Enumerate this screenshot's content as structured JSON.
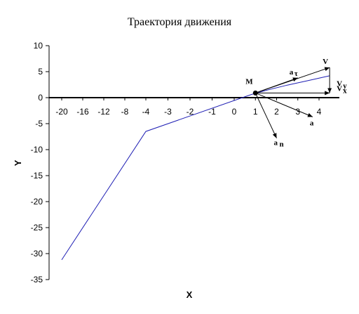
{
  "chart_data": {
    "type": "line",
    "title": "Траектория движения",
    "xlabel": "X",
    "ylabel": "Y",
    "ylim": [
      -35,
      10
    ],
    "y_ticks": [
      10,
      5,
      0,
      -5,
      -10,
      -15,
      -20,
      -25,
      -30,
      -35
    ],
    "x_tick_labels": [
      "-20",
      "-16",
      "-12",
      "-8",
      "-4",
      "-3",
      "-2",
      "-1",
      "0",
      "1",
      "2",
      "3",
      "4"
    ],
    "grid": false,
    "series": [
      {
        "color": "#1f1fb4",
        "points": [
          {
            "x": -20,
            "y": -31.2
          },
          {
            "x": -4,
            "y": -6.5
          },
          {
            "x": 0.8,
            "y": 0.6
          },
          {
            "x": 1.5,
            "y": 1.4
          },
          {
            "x": 2.5,
            "y": 2.4
          },
          {
            "x": 3.5,
            "y": 3.3
          },
          {
            "x": 4.5,
            "y": 4.2
          }
        ]
      }
    ],
    "point": {
      "label": "M",
      "x": 1,
      "y": 0.9
    },
    "vectors": [
      {
        "label": "V",
        "to": {
          "x": 4.5,
          "y": 5.8
        }
      },
      {
        "label": "V",
        "sub": "y",
        "to": {
          "x": 4.5,
          "y": 0.9
        }
      },
      {
        "label": "V",
        "sub": "x",
        "to": {
          "x": 4.5,
          "y": 0.9
        }
      },
      {
        "label": "a",
        "sub": "τ",
        "to": {
          "x": 3.0,
          "y": 3.8
        }
      },
      {
        "label": "a",
        "to": {
          "x": 3.7,
          "y": -3.7
        }
      },
      {
        "label": "a",
        "sub": "n",
        "to": {
          "x": 2.0,
          "y": -7.8
        }
      }
    ],
    "axis_color": "#000000"
  }
}
